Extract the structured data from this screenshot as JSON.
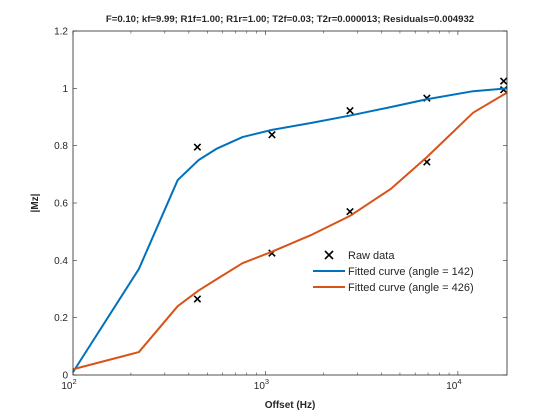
{
  "chart_data": {
    "type": "line",
    "title": "F=0.10; kf=9.99; R1f=1.00; R1r=1.00; T2f=0.03; T2r=0.000013; Residuals=0.004932",
    "xlabel": "Offset (Hz)",
    "ylabel": "|Mz|",
    "xscale": "log",
    "xlim": [
      100,
      18000
    ],
    "ylim": [
      0,
      1.2
    ],
    "x_ticks": [
      {
        "value": 100,
        "base": "10",
        "exp": "2"
      },
      {
        "value": 1000,
        "base": "10",
        "exp": "3"
      },
      {
        "value": 10000,
        "base": "10",
        "exp": "4"
      }
    ],
    "y_ticks": [
      {
        "value": 0,
        "label": "0"
      },
      {
        "value": 0.2,
        "label": "0.2"
      },
      {
        "value": 0.4,
        "label": "0.4"
      },
      {
        "value": 0.6,
        "label": "0.6"
      },
      {
        "value": 0.8,
        "label": "0.8"
      },
      {
        "value": 1.0,
        "label": "1"
      },
      {
        "value": 1.2,
        "label": "1.2"
      }
    ],
    "grid": false,
    "legend_position": "lower-right",
    "series": [
      {
        "name": "Raw data",
        "kind": "markers",
        "marker": "x",
        "color": "#000000",
        "x": [
          443,
          443,
          1081,
          1081,
          2750,
          2750,
          6900,
          6900,
          17300,
          17300
        ],
        "y": [
          0.795,
          0.265,
          0.838,
          0.425,
          0.922,
          0.57,
          0.966,
          0.743,
          1.025,
          0.995
        ]
      },
      {
        "name": "Fitted curve (angle = 142)",
        "kind": "line",
        "color": "#0072BD",
        "x": [
          100,
          220,
          350,
          450,
          560,
          760,
          1081,
          1750,
          2750,
          4500,
          6900,
          12000,
          18000
        ],
        "y": [
          0.01,
          0.37,
          0.68,
          0.75,
          0.79,
          0.83,
          0.855,
          0.88,
          0.905,
          0.935,
          0.962,
          0.99,
          1.0
        ]
      },
      {
        "name": "Fitted curve (angle = 426)",
        "kind": "line",
        "color": "#D95319",
        "x": [
          100,
          220,
          350,
          450,
          560,
          760,
          1081,
          1750,
          2750,
          4500,
          6900,
          12000,
          18000
        ],
        "y": [
          0.02,
          0.08,
          0.24,
          0.295,
          0.335,
          0.39,
          0.43,
          0.49,
          0.555,
          0.65,
          0.76,
          0.915,
          0.985
        ]
      }
    ]
  }
}
